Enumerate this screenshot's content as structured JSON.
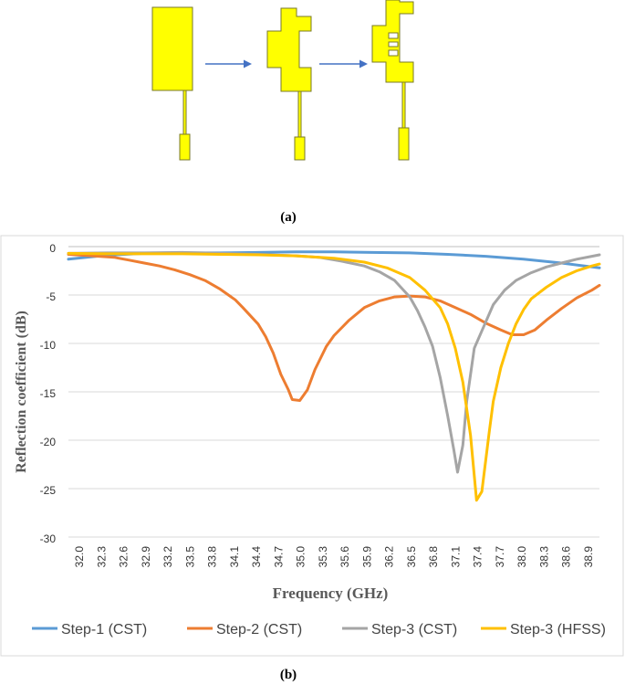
{
  "captions": {
    "a": "(a)",
    "b": "(b)"
  },
  "colors": {
    "antenna_fill": "#ffff00",
    "antenna_stroke": "#7a7a2a",
    "arrow": "#4472c4"
  },
  "chart_data": {
    "type": "line",
    "title": "",
    "xlabel": "Frequency (GHz)",
    "ylabel": "Reflection  coefficient (dB)",
    "xlim": [
      32.0,
      39.0
    ],
    "ylim": [
      -30,
      0
    ],
    "yticks": [
      0,
      -5,
      -10,
      -15,
      -20,
      -25,
      -30
    ],
    "xtick_labels": [
      "32.0",
      "32.3",
      "32.6",
      "32.9",
      "33.2",
      "33.5",
      "33.8",
      "34.1",
      "34.4",
      "34.7",
      "35.0",
      "35.3",
      "35.6",
      "35.9",
      "36.2",
      "36.5",
      "36.8",
      "37.1",
      "37.4",
      "37.7",
      "38.0",
      "38.3",
      "38.6",
      "38.9"
    ],
    "grid": "horizontal",
    "legend_position": "bottom",
    "series": [
      {
        "name": "Step-1 (CST)",
        "color": "#5b9bd5",
        "points": [
          [
            32.0,
            -1.3
          ],
          [
            32.5,
            -0.9
          ],
          [
            33.0,
            -0.7
          ],
          [
            33.5,
            -0.65
          ],
          [
            34.0,
            -0.65
          ],
          [
            34.5,
            -0.6
          ],
          [
            35.0,
            -0.55
          ],
          [
            35.5,
            -0.55
          ],
          [
            36.0,
            -0.6
          ],
          [
            36.5,
            -0.65
          ],
          [
            37.0,
            -0.8
          ],
          [
            37.5,
            -1.0
          ],
          [
            38.0,
            -1.3
          ],
          [
            38.5,
            -1.7
          ],
          [
            39.0,
            -2.2
          ]
        ]
      },
      {
        "name": "Step-2 (CST)",
        "color": "#ed7d31",
        "points": [
          [
            32.0,
            -0.8
          ],
          [
            32.2,
            -0.9
          ],
          [
            32.4,
            -1.0
          ],
          [
            32.6,
            -1.1
          ],
          [
            32.8,
            -1.4
          ],
          [
            33.0,
            -1.7
          ],
          [
            33.2,
            -2.0
          ],
          [
            33.4,
            -2.4
          ],
          [
            33.6,
            -2.9
          ],
          [
            33.8,
            -3.5
          ],
          [
            34.0,
            -4.4
          ],
          [
            34.2,
            -5.5
          ],
          [
            34.3,
            -6.3
          ],
          [
            34.5,
            -8.0
          ],
          [
            34.6,
            -9.3
          ],
          [
            34.7,
            -11.0
          ],
          [
            34.8,
            -13.2
          ],
          [
            34.9,
            -14.8
          ],
          [
            34.95,
            -15.8
          ],
          [
            35.05,
            -15.9
          ],
          [
            35.15,
            -14.8
          ],
          [
            35.25,
            -12.7
          ],
          [
            35.4,
            -10.3
          ],
          [
            35.5,
            -9.2
          ],
          [
            35.7,
            -7.6
          ],
          [
            35.9,
            -6.3
          ],
          [
            36.1,
            -5.6
          ],
          [
            36.3,
            -5.2
          ],
          [
            36.5,
            -5.1
          ],
          [
            36.7,
            -5.2
          ],
          [
            36.9,
            -5.6
          ],
          [
            37.1,
            -6.3
          ],
          [
            37.3,
            -7.0
          ],
          [
            37.5,
            -7.9
          ],
          [
            37.7,
            -8.6
          ],
          [
            37.85,
            -9.1
          ],
          [
            38.0,
            -9.1
          ],
          [
            38.15,
            -8.6
          ],
          [
            38.3,
            -7.6
          ],
          [
            38.5,
            -6.4
          ],
          [
            38.7,
            -5.3
          ],
          [
            38.9,
            -4.5
          ],
          [
            39.0,
            -4.0
          ]
        ]
      },
      {
        "name": "Step-3 (CST)",
        "color": "#a5a5a5",
        "points": [
          [
            32.0,
            -0.7
          ],
          [
            32.5,
            -0.65
          ],
          [
            33.0,
            -0.65
          ],
          [
            33.5,
            -0.6
          ],
          [
            34.0,
            -0.7
          ],
          [
            34.5,
            -0.8
          ],
          [
            35.0,
            -0.95
          ],
          [
            35.3,
            -1.1
          ],
          [
            35.6,
            -1.5
          ],
          [
            35.9,
            -2.0
          ],
          [
            36.1,
            -2.6
          ],
          [
            36.3,
            -3.5
          ],
          [
            36.5,
            -5.2
          ],
          [
            36.6,
            -6.6
          ],
          [
            36.7,
            -8.3
          ],
          [
            36.8,
            -10.3
          ],
          [
            36.9,
            -13.5
          ],
          [
            37.0,
            -17.5
          ],
          [
            37.08,
            -21.0
          ],
          [
            37.13,
            -23.3
          ],
          [
            37.2,
            -20.5
          ],
          [
            37.25,
            -16.0
          ],
          [
            37.35,
            -10.5
          ],
          [
            37.5,
            -7.8
          ],
          [
            37.6,
            -6.0
          ],
          [
            37.75,
            -4.5
          ],
          [
            37.9,
            -3.5
          ],
          [
            38.1,
            -2.7
          ],
          [
            38.3,
            -2.1
          ],
          [
            38.5,
            -1.7
          ],
          [
            38.7,
            -1.3
          ],
          [
            38.9,
            -1.0
          ],
          [
            39.0,
            -0.85
          ]
        ]
      },
      {
        "name": "Step-3 (HFSS)",
        "color": "#ffc000",
        "points": [
          [
            32.0,
            -0.7
          ],
          [
            32.5,
            -0.75
          ],
          [
            33.0,
            -0.75
          ],
          [
            33.5,
            -0.75
          ],
          [
            34.0,
            -0.8
          ],
          [
            34.5,
            -0.85
          ],
          [
            35.0,
            -0.95
          ],
          [
            35.5,
            -1.2
          ],
          [
            35.9,
            -1.6
          ],
          [
            36.2,
            -2.2
          ],
          [
            36.5,
            -3.2
          ],
          [
            36.7,
            -4.5
          ],
          [
            36.9,
            -6.3
          ],
          [
            37.0,
            -8.0
          ],
          [
            37.1,
            -10.5
          ],
          [
            37.2,
            -14.0
          ],
          [
            37.3,
            -19.5
          ],
          [
            37.38,
            -26.2
          ],
          [
            37.45,
            -25.3
          ],
          [
            37.55,
            -19.0
          ],
          [
            37.6,
            -16.0
          ],
          [
            37.7,
            -12.5
          ],
          [
            37.8,
            -10.0
          ],
          [
            37.9,
            -8.0
          ],
          [
            38.0,
            -6.5
          ],
          [
            38.1,
            -5.4
          ],
          [
            38.3,
            -4.2
          ],
          [
            38.5,
            -3.2
          ],
          [
            38.7,
            -2.5
          ],
          [
            38.9,
            -2.0
          ],
          [
            39.0,
            -1.8
          ]
        ]
      }
    ]
  }
}
